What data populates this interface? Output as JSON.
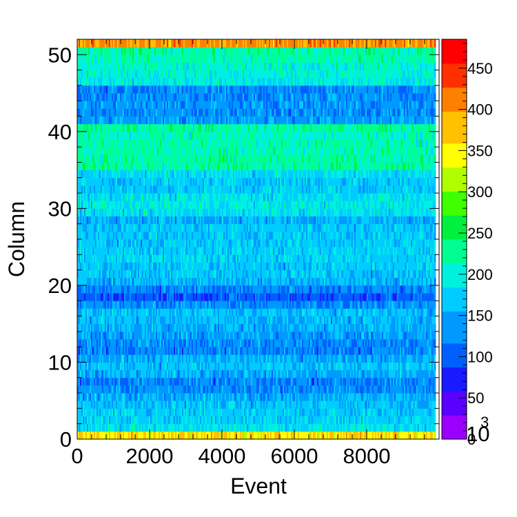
{
  "chart_data": {
    "type": "heatmap",
    "title": "",
    "xlabel": "Event",
    "ylabel": "Column",
    "xlim": [
      0,
      10000
    ],
    "ylim": [
      0,
      52
    ],
    "zlim": [
      0,
      485
    ],
    "x_ticks": [
      "0",
      "2000",
      "4000",
      "6000",
      "8000"
    ],
    "y_ticks": [
      "0",
      "10",
      "20",
      "30",
      "40",
      "50"
    ],
    "z_ticks": [
      "0",
      "50",
      "100",
      "150",
      "200",
      "250",
      "300",
      "350",
      "400",
      "450"
    ],
    "z_exponent_label": "10",
    "z_exponent_power": "3",
    "x_range_filled": [
      0,
      9900
    ],
    "x_bins": 260,
    "colorbar_palette": [
      "#9b00ff",
      "#5a00ff",
      "#1a1aff",
      "#0060ff",
      "#0099ff",
      "#00ccff",
      "#00f0e0",
      "#00ff90",
      "#00f040",
      "#40ff00",
      "#b0ff00",
      "#ffff00",
      "#ffc000",
      "#ff8000",
      "#ff3000",
      "#ff0000"
    ],
    "row_means": [
      360,
      185,
      170,
      165,
      160,
      150,
      130,
      125,
      150,
      160,
      150,
      125,
      130,
      140,
      150,
      155,
      160,
      130,
      105,
      125,
      155,
      165,
      165,
      170,
      170,
      165,
      165,
      165,
      150,
      180,
      190,
      185,
      165,
      165,
      180,
      225,
      220,
      215,
      215,
      210,
      225,
      140,
      130,
      135,
      130,
      130,
      190,
      200,
      205,
      215,
      220,
      400
    ]
  },
  "colorbar": {
    "exponent_base": "10",
    "exponent_power": "3"
  }
}
